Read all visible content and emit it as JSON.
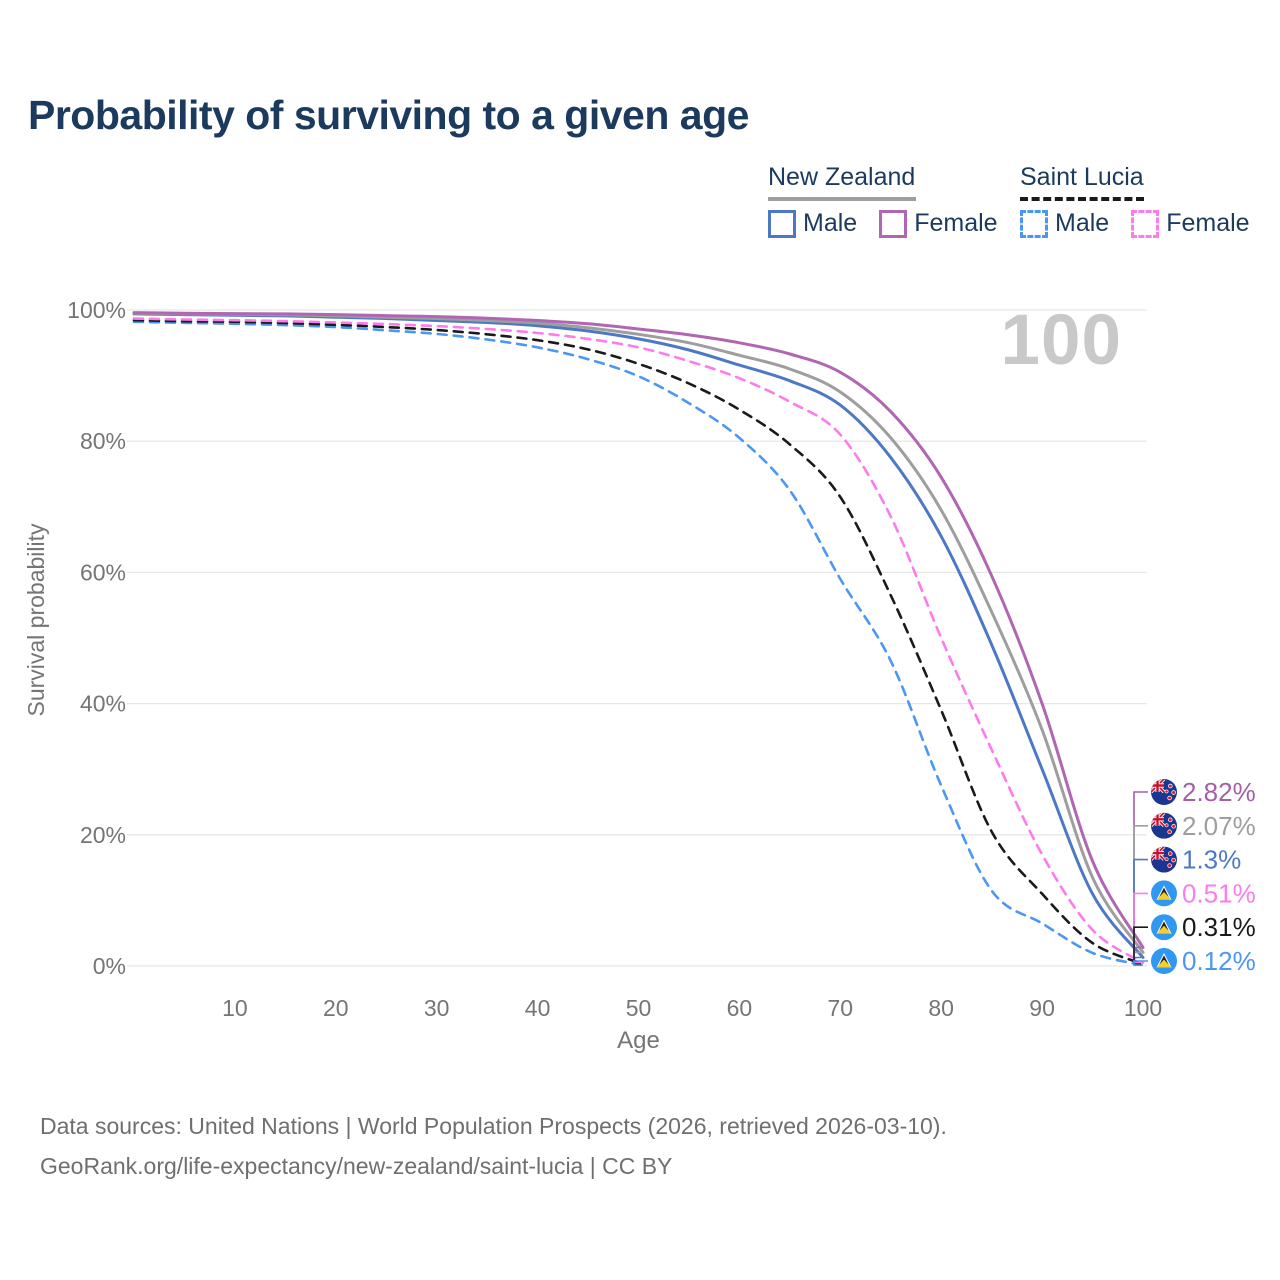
{
  "title": "Probability of surviving to a given age",
  "watermark_age": "100",
  "legend": {
    "groups": [
      {
        "label": "New Zealand",
        "line_style": "solid",
        "line_color": "#9e9e9e",
        "items": [
          {
            "label": "Male",
            "color": "#4d79c4",
            "dashed": false
          },
          {
            "label": "Female",
            "color": "#b066b2",
            "dashed": false
          }
        ]
      },
      {
        "label": "Saint Lucia",
        "line_style": "dashed",
        "line_color": "#1a1a1a",
        "items": [
          {
            "label": "Male",
            "color": "#4c97f3",
            "dashed": true
          },
          {
            "label": "Female",
            "color": "#fb7cea",
            "dashed": true
          }
        ]
      }
    ]
  },
  "chart_data": {
    "type": "line",
    "title": "Probability of surviving to a given age",
    "xlabel": "Age",
    "ylabel": "Survival probability",
    "xlim": [
      0,
      100
    ],
    "ylim": [
      0,
      100
    ],
    "grid": "horizontal",
    "x_ages": [
      0,
      5,
      10,
      15,
      20,
      25,
      30,
      35,
      40,
      45,
      50,
      55,
      60,
      65,
      70,
      75,
      80,
      85,
      90,
      95,
      100
    ],
    "xticks": [
      {
        "value": 10,
        "label": "10"
      },
      {
        "value": 20,
        "label": "20"
      },
      {
        "value": 30,
        "label": "30"
      },
      {
        "value": 40,
        "label": "40"
      },
      {
        "value": 50,
        "label": "50"
      },
      {
        "value": 60,
        "label": "60"
      },
      {
        "value": 70,
        "label": "70"
      },
      {
        "value": 80,
        "label": "80"
      },
      {
        "value": 90,
        "label": "90"
      },
      {
        "value": 100,
        "label": "100"
      }
    ],
    "yticks": [
      {
        "value": 100,
        "label": "100%"
      },
      {
        "value": 80,
        "label": "80%"
      },
      {
        "value": 60,
        "label": "60%"
      },
      {
        "value": 40,
        "label": "40%"
      },
      {
        "value": 20,
        "label": "20%"
      },
      {
        "value": 0,
        "label": "0%"
      }
    ],
    "series": [
      {
        "id": "nz-female",
        "country": "New Zealand",
        "color": "#b066b2",
        "dashed": false,
        "values": [
          99.6,
          99.5,
          99.45,
          99.4,
          99.3,
          99.15,
          99.0,
          98.75,
          98.4,
          97.9,
          97.1,
          96.2,
          95.0,
          93.3,
          90.5,
          84.5,
          74.5,
          59.5,
          40.0,
          16.0,
          2.82
        ]
      },
      {
        "id": "nz-both",
        "country": "New Zealand",
        "color": "#9e9e9e",
        "dashed": false,
        "values": [
          99.5,
          99.4,
          99.35,
          99.25,
          99.1,
          98.9,
          98.7,
          98.4,
          98.0,
          97.3,
          96.3,
          95.0,
          93.1,
          91.0,
          87.5,
          80.5,
          69.5,
          54.0,
          36.0,
          13.5,
          2.07
        ]
      },
      {
        "id": "nz-male",
        "country": "New Zealand",
        "color": "#4d79c4",
        "dashed": false,
        "values": [
          99.4,
          99.3,
          99.2,
          99.1,
          98.9,
          98.7,
          98.4,
          98.1,
          97.6,
          96.8,
          95.6,
          93.9,
          91.6,
          89.2,
          85.5,
          77.5,
          65.5,
          49.0,
          30.0,
          11.0,
          1.3
        ]
      },
      {
        "id": "slc-female",
        "country": "Saint Lucia",
        "color": "#fb7cea",
        "dashed": true,
        "values": [
          98.7,
          98.55,
          98.45,
          98.3,
          98.1,
          97.85,
          97.55,
          97.1,
          96.5,
          95.6,
          94.3,
          92.2,
          89.6,
          86.0,
          81.0,
          68.5,
          50.0,
          33.0,
          17.0,
          5.5,
          0.51
        ]
      },
      {
        "id": "slc-both",
        "country": "Saint Lucia",
        "color": "#1a1a1a",
        "dashed": true,
        "values": [
          98.45,
          98.3,
          98.2,
          98.0,
          97.75,
          97.4,
          96.95,
          96.3,
          95.4,
          94.0,
          91.8,
          88.8,
          84.8,
          79.5,
          71.5,
          56.5,
          39.0,
          20.5,
          11.0,
          3.5,
          0.31
        ]
      },
      {
        "id": "slc-male",
        "country": "Saint Lucia",
        "color": "#4c97f3",
        "dashed": true,
        "values": [
          98.2,
          98.05,
          97.9,
          97.7,
          97.4,
          96.9,
          96.35,
          95.5,
          94.3,
          92.5,
          89.9,
          85.8,
          80.5,
          72.5,
          59.0,
          46.5,
          27.5,
          11.5,
          6.5,
          2.0,
          0.12
        ]
      }
    ],
    "end_labels": [
      {
        "text": "2.82%",
        "color": "#a55fa8",
        "flag": "nz",
        "series": "nz-female"
      },
      {
        "text": "2.07%",
        "color": "#9e9e9e",
        "flag": "nz",
        "series": "nz-both"
      },
      {
        "text": "1.3%",
        "color": "#4d79c4",
        "flag": "nz",
        "series": "nz-male"
      },
      {
        "text": "0.51%",
        "color": "#fb7cea",
        "flag": "slc",
        "series": "slc-female"
      },
      {
        "text": "0.31%",
        "color": "#1a1a1a",
        "flag": "slc",
        "series": "slc-both"
      },
      {
        "text": "0.12%",
        "color": "#4c97f3",
        "flag": "slc",
        "series": "slc-male"
      }
    ]
  },
  "footer": {
    "line1": "Data sources: United Nations | World Population Prospects (2026, retrieved 2026-03-10).",
    "line2": "GeoRank.org/life-expectancy/new-zealand/saint-lucia | CC BY"
  }
}
